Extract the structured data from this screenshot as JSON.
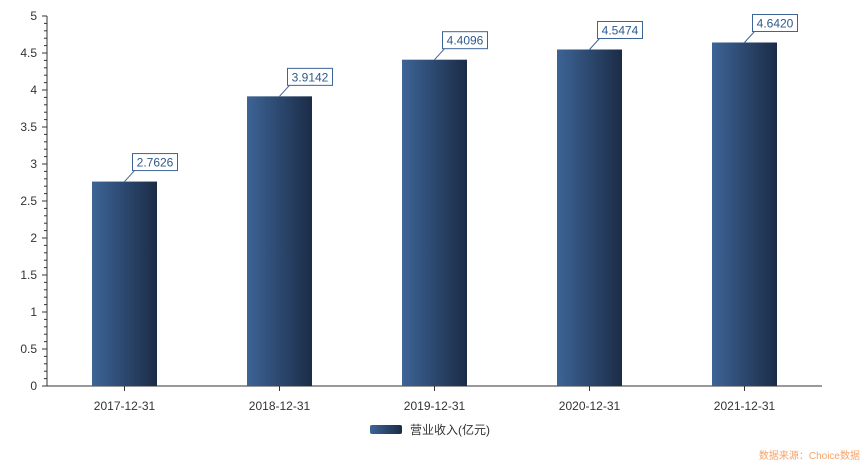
{
  "chart_data": {
    "type": "bar",
    "title": "",
    "xlabel": "",
    "ylabel": "",
    "categories": [
      "2017-12-31",
      "2018-12-31",
      "2019-12-31",
      "2020-12-31",
      "2021-12-31"
    ],
    "series": [
      {
        "name": "营业收入(亿元)",
        "values": [
          2.7626,
          3.9142,
          4.4096,
          4.5474,
          4.642
        ],
        "labels": [
          "2.7626",
          "3.9142",
          "4.4096",
          "4.5474",
          "4.6420"
        ]
      }
    ],
    "ylim": [
      0,
      5
    ],
    "yticks": [
      "0",
      "0.5",
      "1",
      "1.5",
      "2",
      "2.5",
      "3",
      "3.5",
      "4",
      "4.5",
      "5"
    ],
    "grid": false,
    "legend_position": "bottom-center",
    "colors": {
      "bar_light": "#3d6496",
      "bar_dark": "#1b2c47",
      "label_border": "#3d6496",
      "label_text": "#2f5a8c",
      "axis": "#333333",
      "watermark": "#f4a46a"
    }
  },
  "watermark": "数据来源：Choice数据"
}
